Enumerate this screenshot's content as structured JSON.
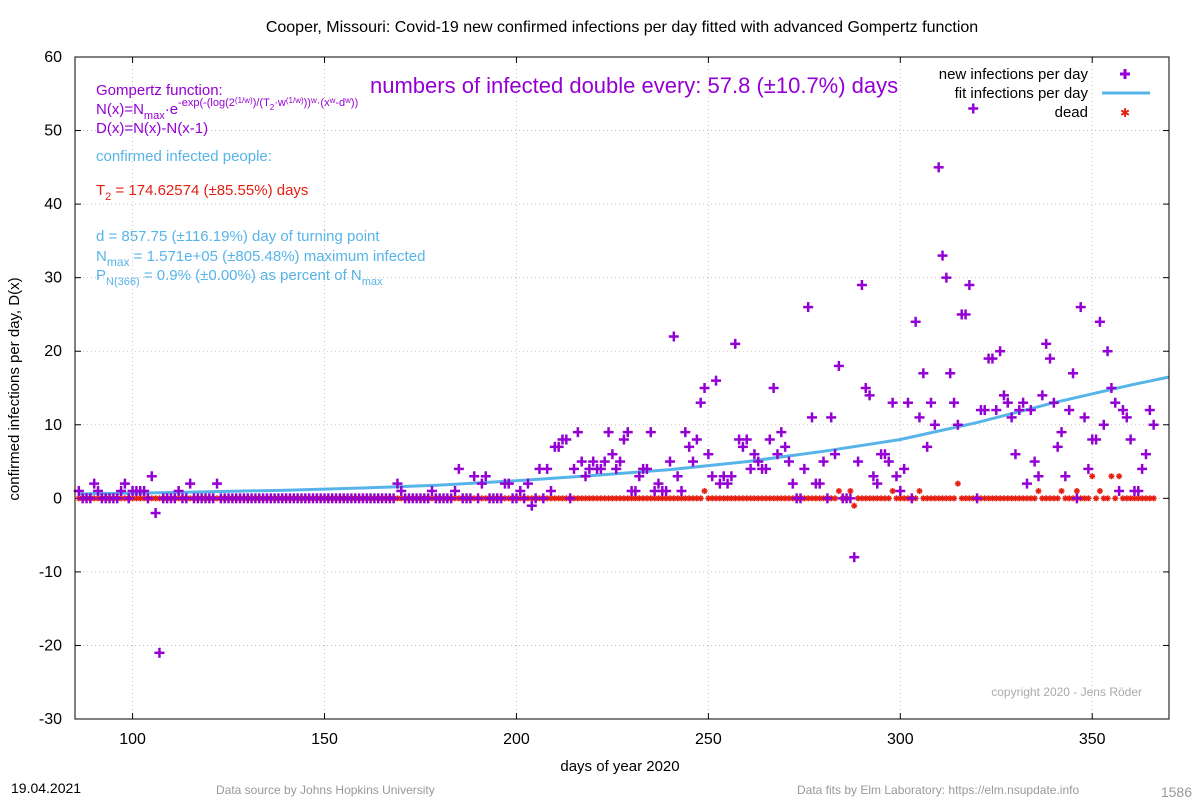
{
  "chart_data": {
    "type": "scatter",
    "title": "Cooper,  Missouri: Covid-19 new confirmed infections per day fitted with advanced Gompertz function",
    "xlabel": "days of year 2020",
    "ylabel": "confirmed infections per day, D(x)",
    "xlim": [
      85,
      370
    ],
    "ylim": [
      -30,
      60
    ],
    "xticks": [
      100,
      150,
      200,
      250,
      300,
      350
    ],
    "yticks": [
      -30,
      -20,
      -10,
      0,
      10,
      20,
      30,
      40,
      50,
      60
    ],
    "grid": true,
    "legend_position": "top-right",
    "colors": {
      "infections": "#9400d3",
      "fit": "#56b4e9",
      "dead": "#e51e10"
    },
    "series": [
      {
        "name": "new infections per day",
        "marker": "plus",
        "points": [
          [
            86,
            1
          ],
          [
            87,
            0
          ],
          [
            88,
            0
          ],
          [
            89,
            0
          ],
          [
            90,
            2
          ],
          [
            91,
            1
          ],
          [
            92,
            0
          ],
          [
            93,
            0
          ],
          [
            94,
            0
          ],
          [
            95,
            0
          ],
          [
            96,
            0
          ],
          [
            97,
            1
          ],
          [
            98,
            2
          ],
          [
            99,
            0
          ],
          [
            100,
            1
          ],
          [
            101,
            1
          ],
          [
            102,
            1
          ],
          [
            103,
            1
          ],
          [
            104,
            0
          ],
          [
            105,
            3
          ],
          [
            106,
            -2
          ],
          [
            107,
            -21
          ],
          [
            108,
            0
          ],
          [
            109,
            0
          ],
          [
            110,
            0
          ],
          [
            111,
            0
          ],
          [
            112,
            1
          ],
          [
            113,
            0
          ],
          [
            114,
            0
          ],
          [
            115,
            2
          ],
          [
            116,
            0
          ],
          [
            117,
            0
          ],
          [
            118,
            0
          ],
          [
            119,
            0
          ],
          [
            120,
            0
          ],
          [
            121,
            0
          ],
          [
            122,
            2
          ],
          [
            123,
            0
          ],
          [
            124,
            0
          ],
          [
            125,
            0
          ],
          [
            130,
            0
          ],
          [
            140,
            0
          ],
          [
            150,
            0
          ],
          [
            160,
            0
          ],
          [
            165,
            0
          ],
          [
            168,
            0
          ],
          [
            169,
            2
          ],
          [
            170,
            1
          ],
          [
            172,
            0
          ],
          [
            174,
            0
          ],
          [
            176,
            0
          ],
          [
            178,
            1
          ],
          [
            180,
            0
          ],
          [
            182,
            0
          ],
          [
            184,
            1
          ],
          [
            185,
            4
          ],
          [
            187,
            0
          ],
          [
            189,
            3
          ],
          [
            191,
            2
          ],
          [
            192,
            3
          ],
          [
            195,
            0
          ],
          [
            197,
            2
          ],
          [
            198,
            2
          ],
          [
            200,
            0
          ],
          [
            201,
            1
          ],
          [
            202,
            0
          ],
          [
            203,
            2
          ],
          [
            204,
            -1
          ],
          [
            205,
            0
          ],
          [
            206,
            4
          ],
          [
            207,
            0
          ],
          [
            208,
            4
          ],
          [
            209,
            1
          ],
          [
            210,
            7
          ],
          [
            211,
            7
          ],
          [
            212,
            8
          ],
          [
            213,
            8
          ],
          [
            214,
            0
          ],
          [
            215,
            4
          ],
          [
            216,
            9
          ],
          [
            217,
            5
          ],
          [
            218,
            3
          ],
          [
            219,
            4
          ],
          [
            220,
            5
          ],
          [
            221,
            4
          ],
          [
            222,
            4
          ],
          [
            223,
            5
          ],
          [
            224,
            9
          ],
          [
            225,
            6
          ],
          [
            226,
            4
          ],
          [
            227,
            5
          ],
          [
            228,
            8
          ],
          [
            229,
            9
          ],
          [
            230,
            1
          ],
          [
            231,
            1
          ],
          [
            232,
            3
          ],
          [
            233,
            4
          ],
          [
            234,
            4
          ],
          [
            235,
            9
          ],
          [
            236,
            1
          ],
          [
            237,
            2
          ],
          [
            238,
            1
          ],
          [
            239,
            1
          ],
          [
            240,
            5
          ],
          [
            241,
            22
          ],
          [
            242,
            3
          ],
          [
            243,
            1
          ],
          [
            244,
            9
          ],
          [
            245,
            7
          ],
          [
            246,
            5
          ],
          [
            247,
            8
          ],
          [
            248,
            13
          ],
          [
            249,
            15
          ],
          [
            250,
            6
          ],
          [
            251,
            3
          ],
          [
            252,
            16
          ],
          [
            253,
            2
          ],
          [
            254,
            3
          ],
          [
            255,
            2
          ],
          [
            256,
            3
          ],
          [
            257,
            21
          ],
          [
            258,
            8
          ],
          [
            259,
            7
          ],
          [
            260,
            8
          ],
          [
            261,
            4
          ],
          [
            262,
            6
          ],
          [
            263,
            5
          ],
          [
            264,
            4
          ],
          [
            265,
            4
          ],
          [
            266,
            8
          ],
          [
            267,
            15
          ],
          [
            268,
            6
          ],
          [
            269,
            9
          ],
          [
            270,
            7
          ],
          [
            271,
            5
          ],
          [
            272,
            2
          ],
          [
            273,
            0
          ],
          [
            274,
            0
          ],
          [
            275,
            4
          ],
          [
            276,
            26
          ],
          [
            277,
            11
          ],
          [
            278,
            2
          ],
          [
            279,
            2
          ],
          [
            280,
            5
          ],
          [
            281,
            0
          ],
          [
            282,
            11
          ],
          [
            283,
            6
          ],
          [
            284,
            18
          ],
          [
            285,
            0
          ],
          [
            286,
            0
          ],
          [
            288,
            -8
          ],
          [
            289,
            5
          ],
          [
            290,
            29
          ],
          [
            291,
            15
          ],
          [
            292,
            14
          ],
          [
            293,
            3
          ],
          [
            294,
            2
          ],
          [
            295,
            6
          ],
          [
            296,
            6
          ],
          [
            297,
            5
          ],
          [
            298,
            13
          ],
          [
            299,
            3
          ],
          [
            300,
            1
          ],
          [
            301,
            4
          ],
          [
            302,
            13
          ],
          [
            303,
            0
          ],
          [
            304,
            24
          ],
          [
            305,
            11
          ],
          [
            306,
            17
          ],
          [
            307,
            7
          ],
          [
            308,
            13
          ],
          [
            309,
            10
          ],
          [
            310,
            45
          ],
          [
            311,
            33
          ],
          [
            312,
            30
          ],
          [
            313,
            17
          ],
          [
            314,
            13
          ],
          [
            315,
            10
          ],
          [
            316,
            25
          ],
          [
            317,
            25
          ],
          [
            318,
            29
          ],
          [
            319,
            53
          ],
          [
            320,
            0
          ],
          [
            321,
            12
          ],
          [
            322,
            12
          ],
          [
            323,
            19
          ],
          [
            324,
            19
          ],
          [
            325,
            12
          ],
          [
            326,
            20
          ],
          [
            327,
            14
          ],
          [
            328,
            13
          ],
          [
            329,
            11
          ],
          [
            330,
            6
          ],
          [
            331,
            12
          ],
          [
            332,
            13
          ],
          [
            333,
            2
          ],
          [
            334,
            12
          ],
          [
            335,
            5
          ],
          [
            336,
            3
          ],
          [
            337,
            14
          ],
          [
            338,
            21
          ],
          [
            339,
            19
          ],
          [
            340,
            13
          ],
          [
            341,
            7
          ],
          [
            342,
            9
          ],
          [
            343,
            3
          ],
          [
            344,
            12
          ],
          [
            345,
            17
          ],
          [
            346,
            0
          ],
          [
            347,
            26
          ],
          [
            348,
            11
          ],
          [
            349,
            4
          ],
          [
            350,
            8
          ],
          [
            351,
            8
          ],
          [
            352,
            24
          ],
          [
            353,
            10
          ],
          [
            354,
            20
          ],
          [
            355,
            15
          ],
          [
            356,
            13
          ],
          [
            357,
            1
          ],
          [
            358,
            12
          ],
          [
            359,
            11
          ],
          [
            360,
            8
          ],
          [
            361,
            1
          ],
          [
            362,
            1
          ],
          [
            363,
            4
          ],
          [
            364,
            6
          ],
          [
            365,
            12
          ],
          [
            366,
            10
          ]
        ]
      },
      {
        "name": "fit infections per day",
        "marker": "line",
        "points": [
          [
            86,
            0.6
          ],
          [
            100,
            0.7
          ],
          [
            120,
            0.9
          ],
          [
            140,
            1.1
          ],
          [
            160,
            1.4
          ],
          [
            180,
            1.8
          ],
          [
            200,
            2.4
          ],
          [
            220,
            3.1
          ],
          [
            240,
            3.9
          ],
          [
            260,
            5.0
          ],
          [
            280,
            6.4
          ],
          [
            300,
            8.0
          ],
          [
            320,
            10.3
          ],
          [
            340,
            13.0
          ],
          [
            360,
            15.4
          ],
          [
            370,
            16.5
          ]
        ]
      },
      {
        "name": "dead",
        "marker": "star",
        "points": [
          [
            170,
            0
          ],
          [
            249,
            1
          ],
          [
            284,
            1
          ],
          [
            287,
            1
          ],
          [
            288,
            -1
          ],
          [
            298,
            1
          ],
          [
            305,
            1
          ],
          [
            315,
            2
          ],
          [
            336,
            1
          ],
          [
            342,
            1
          ],
          [
            346,
            1
          ],
          [
            350,
            3
          ],
          [
            352,
            1
          ],
          [
            355,
            3
          ],
          [
            357,
            3
          ]
        ],
        "baseline_zero_range": [
          86,
          366
        ]
      }
    ]
  },
  "annotations": {
    "gompertz_title": "Gompertz function:",
    "n_lhs": "N(x)=N",
    "n_max_sub": "max",
    "n_e": "·e",
    "n_exp": "-exp(-(log(2",
    "n_exp_1w": "(1/w)",
    "n_exp_b": ")/(T",
    "n_exp_2": "2",
    "n_exp_c": "·w",
    "n_exp_1w_b": "(1/w)",
    "n_exp_d": "))",
    "n_exp_w": "w",
    "n_exp_e": "·(x",
    "n_exp_w2": "w",
    "n_exp_f": "-d",
    "n_exp_w3": "w",
    "n_exp_g": "))",
    "d_formula": "D(x)=N(x)-N(x-1)",
    "confirmed_header": "confirmed infected people:",
    "t2_prefix": "T",
    "t2_sub": "2",
    "t2_value": " = 174.62574 (±85.55%) days",
    "d_value": "d = 857.75 (±116.19%) day of turning point",
    "nmax_prefix": "N",
    "nmax_sub": "max",
    "nmax_value": " = 1.571e+05 (±805.48%) maximum infected",
    "p_prefix": "P",
    "p_sub": "N(366)",
    "p_value": " = 0.9% (±0.00%) as percent of N",
    "p_sub2": "max",
    "doubling": "numbers of infected double every: 57.8 (±10.7%) days",
    "copyright": "copyright 2020 - Jens Röder"
  },
  "footer": {
    "date": "19.04.2021",
    "source": "Data source by Johns Hopkins University",
    "fits": "Data fits by Elm Laboratory: https://elm.nsupdate.info",
    "number": "1586"
  }
}
